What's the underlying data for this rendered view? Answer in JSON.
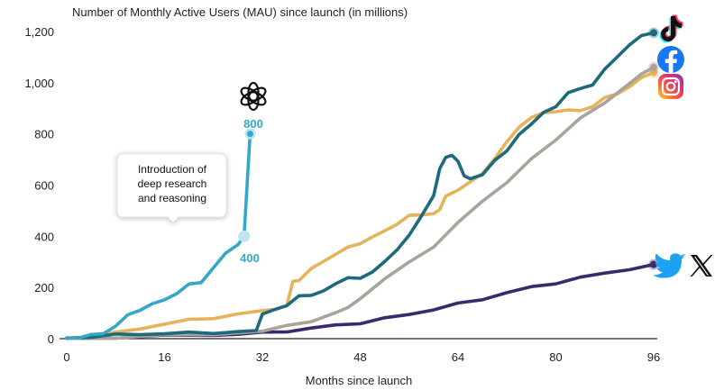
{
  "chart_data": {
    "type": "line",
    "title": "Number of Monthly Active Users (MAU) since launch (in millions)",
    "xlabel": "Months since launch",
    "ylabel": "",
    "xlim": [
      0,
      96
    ],
    "ylim": [
      0,
      1200
    ],
    "x_ticks": [
      0,
      16,
      32,
      48,
      64,
      80,
      96
    ],
    "y_ticks": [
      0,
      200,
      400,
      600,
      800,
      1000,
      1200
    ],
    "y_tick_labels": [
      "0",
      "200",
      "400",
      "600",
      "800",
      "1,000",
      "1,200"
    ],
    "grid": false,
    "series": [
      {
        "name": "Twitter / X",
        "color": "#3b2a6b",
        "icon": "twitter-x-icon",
        "points": [
          [
            0,
            2
          ],
          [
            8,
            5
          ],
          [
            16,
            10
          ],
          [
            24,
            15
          ],
          [
            28,
            18
          ],
          [
            32,
            22
          ],
          [
            36,
            30
          ],
          [
            40,
            40
          ],
          [
            44,
            52
          ],
          [
            48,
            62
          ],
          [
            52,
            78
          ],
          [
            56,
            95
          ],
          [
            60,
            115
          ],
          [
            64,
            135
          ],
          [
            68,
            155
          ],
          [
            72,
            180
          ],
          [
            76,
            200
          ],
          [
            80,
            218
          ],
          [
            84,
            238
          ],
          [
            88,
            255
          ],
          [
            92,
            273
          ],
          [
            96,
            290
          ]
        ]
      },
      {
        "name": "Instagram",
        "color": "#e5b35a",
        "icon": "instagram-icon",
        "points": [
          [
            0,
            2
          ],
          [
            4,
            10
          ],
          [
            8,
            22
          ],
          [
            12,
            40
          ],
          [
            16,
            58
          ],
          [
            20,
            72
          ],
          [
            24,
            82
          ],
          [
            28,
            95
          ],
          [
            32,
            108
          ],
          [
            34,
            118
          ],
          [
            36,
            125
          ],
          [
            37,
            225
          ],
          [
            38,
            230
          ],
          [
            40,
            270
          ],
          [
            42,
            305
          ],
          [
            44,
            330
          ],
          [
            46,
            355
          ],
          [
            48,
            375
          ],
          [
            50,
            395
          ],
          [
            52,
            420
          ],
          [
            54,
            450
          ],
          [
            56,
            478
          ],
          [
            58,
            485
          ],
          [
            60,
            490
          ],
          [
            61,
            500
          ],
          [
            62,
            560
          ],
          [
            64,
            580
          ],
          [
            66,
            610
          ],
          [
            68,
            650
          ],
          [
            70,
            700
          ],
          [
            72,
            770
          ],
          [
            74,
            830
          ],
          [
            76,
            860
          ],
          [
            78,
            885
          ],
          [
            80,
            888
          ],
          [
            82,
            890
          ],
          [
            84,
            895
          ],
          [
            86,
            905
          ],
          [
            88,
            940
          ],
          [
            90,
            960
          ],
          [
            92,
            980
          ],
          [
            94,
            1020
          ],
          [
            96,
            1040
          ]
        ]
      },
      {
        "name": "Facebook",
        "color": "#aaa39b",
        "icon": "facebook-icon",
        "points": [
          [
            0,
            1
          ],
          [
            8,
            5
          ],
          [
            16,
            12
          ],
          [
            24,
            18
          ],
          [
            32,
            30
          ],
          [
            36,
            48
          ],
          [
            40,
            70
          ],
          [
            44,
            100
          ],
          [
            46,
            120
          ],
          [
            48,
            160
          ],
          [
            52,
            230
          ],
          [
            56,
            300
          ],
          [
            60,
            360
          ],
          [
            64,
            450
          ],
          [
            68,
            540
          ],
          [
            72,
            610
          ],
          [
            76,
            700
          ],
          [
            80,
            780
          ],
          [
            84,
            860
          ],
          [
            88,
            920
          ],
          [
            92,
            1000
          ],
          [
            94,
            1030
          ],
          [
            96,
            1060
          ]
        ]
      },
      {
        "name": "TikTok",
        "color": "#1c6a7c",
        "icon": "tiktok-icon",
        "points": [
          [
            0,
            2
          ],
          [
            4,
            8
          ],
          [
            8,
            14
          ],
          [
            12,
            18
          ],
          [
            16,
            20
          ],
          [
            20,
            22
          ],
          [
            24,
            24
          ],
          [
            28,
            26
          ],
          [
            31,
            30
          ],
          [
            32,
            100
          ],
          [
            34,
            110
          ],
          [
            36,
            130
          ],
          [
            38,
            170
          ],
          [
            40,
            165
          ],
          [
            42,
            190
          ],
          [
            44,
            215
          ],
          [
            46,
            235
          ],
          [
            48,
            240
          ],
          [
            50,
            258
          ],
          [
            52,
            300
          ],
          [
            54,
            350
          ],
          [
            56,
            400
          ],
          [
            58,
            480
          ],
          [
            60,
            560
          ],
          [
            61,
            660
          ],
          [
            62,
            712
          ],
          [
            63,
            716
          ],
          [
            64,
            690
          ],
          [
            65,
            640
          ],
          [
            66,
            622
          ],
          [
            68,
            640
          ],
          [
            70,
            700
          ],
          [
            72,
            730
          ],
          [
            74,
            800
          ],
          [
            76,
            840
          ],
          [
            78,
            880
          ],
          [
            80,
            910
          ],
          [
            82,
            960
          ],
          [
            84,
            975
          ],
          [
            86,
            995
          ],
          [
            88,
            1050
          ],
          [
            90,
            1100
          ],
          [
            92,
            1150
          ],
          [
            94,
            1180
          ],
          [
            96,
            1195
          ]
        ]
      },
      {
        "name": "ChatGPT",
        "color": "#35a8c8",
        "icon": "openai-icon",
        "points": [
          [
            0,
            3
          ],
          [
            2,
            6
          ],
          [
            4,
            12
          ],
          [
            6,
            22
          ],
          [
            8,
            50
          ],
          [
            10,
            90
          ],
          [
            12,
            115
          ],
          [
            14,
            135
          ],
          [
            16,
            150
          ],
          [
            18,
            180
          ],
          [
            20,
            210
          ],
          [
            22,
            220
          ],
          [
            24,
            280
          ],
          [
            26,
            330
          ],
          [
            28,
            370
          ],
          [
            29,
            400
          ],
          [
            30,
            800
          ]
        ]
      }
    ],
    "annotations": {
      "callout": [
        "Introduction of",
        "deep research",
        "and reasoning"
      ],
      "point_400": {
        "x": 29,
        "y": 400,
        "label": "400"
      },
      "point_800": {
        "x": 30,
        "y": 800,
        "label": "800"
      }
    }
  }
}
